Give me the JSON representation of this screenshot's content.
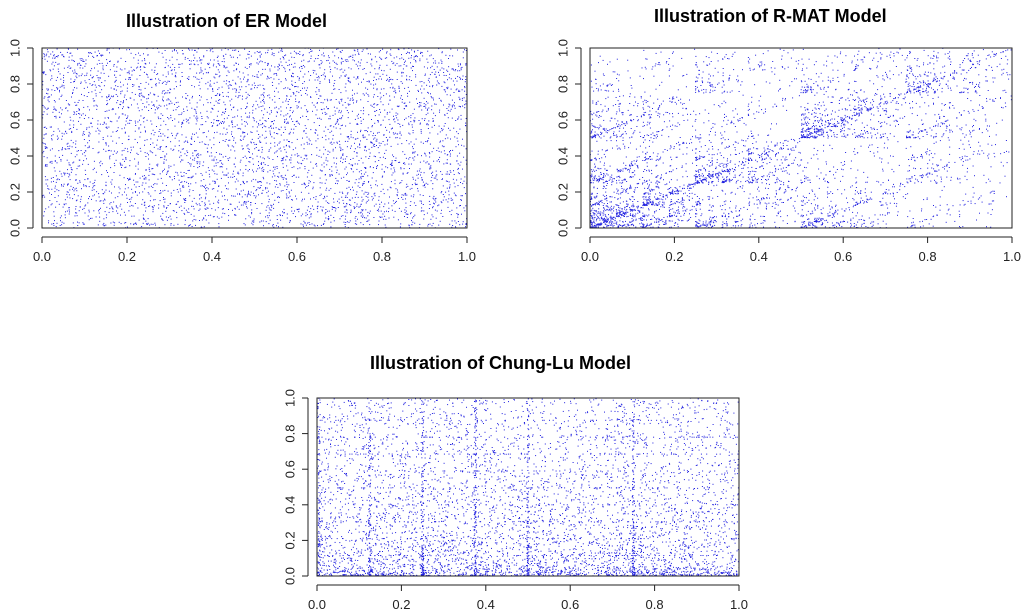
{
  "chart_data": [
    {
      "type": "scatter",
      "title": "Illustration of ER Model",
      "xlabel": "",
      "ylabel": "",
      "xlim": [
        0,
        1
      ],
      "ylim": [
        0,
        1
      ],
      "xticks": [
        "0.0",
        "0.2",
        "0.4",
        "0.6",
        "0.8",
        "1.0"
      ],
      "yticks": [
        "0.0",
        "0.2",
        "0.4",
        "0.6",
        "0.8",
        "1.0"
      ],
      "point_color": "#2020e0",
      "distribution": "uniform",
      "points_approx": 4500,
      "grid": false
    },
    {
      "type": "scatter",
      "title": "Illustration of R-MAT Model",
      "xlabel": "",
      "ylabel": "",
      "xlim": [
        0,
        1
      ],
      "ylim": [
        0,
        1
      ],
      "xticks": [
        "0.0",
        "0.2",
        "0.4",
        "0.6",
        "0.8",
        "1.0"
      ],
      "yticks": [
        "0.0",
        "0.2",
        "0.4",
        "0.6",
        "0.8",
        "1.0"
      ],
      "point_color": "#2020e0",
      "distribution": "recursive-quadrant (dense near origin, diagonal bands)",
      "points_approx": 4500,
      "grid": false
    },
    {
      "type": "scatter",
      "title": "Illustration of Chung-Lu Model",
      "xlabel": "",
      "ylabel": "",
      "xlim": [
        0,
        1
      ],
      "ylim": [
        0,
        1
      ],
      "xticks": [
        "0.0",
        "0.2",
        "0.4",
        "0.6",
        "0.8",
        "1.0"
      ],
      "yticks": [
        "0.0",
        "0.2",
        "0.4",
        "0.6",
        "0.8",
        "1.0"
      ],
      "point_color": "#2020e0",
      "distribution": "degree-weighted (denser toward y=0, vertical stripes)",
      "points_approx": 6000,
      "grid": false
    }
  ]
}
